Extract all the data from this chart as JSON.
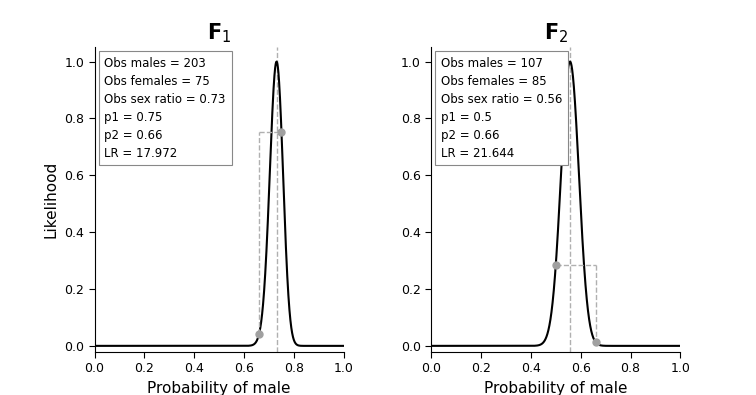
{
  "panels": [
    {
      "title": "F",
      "title_sub": "1",
      "obs_males": 203,
      "obs_females": 75,
      "obs_sex_ratio": 0.73,
      "p1": 0.75,
      "p2": 0.66,
      "LR": 17.972,
      "annotation_lines": [
        "Obs males = 203",
        "Obs females = 75",
        "Obs sex ratio = 0.73",
        "p1 = 0.75",
        "p2 = 0.66",
        "LR = 17.972"
      ]
    },
    {
      "title": "F",
      "title_sub": "2",
      "obs_males": 107,
      "obs_females": 85,
      "obs_sex_ratio": 0.56,
      "p1": 0.5,
      "p2": 0.66,
      "LR": 21.644,
      "annotation_lines": [
        "Obs males = 107",
        "Obs females = 85",
        "Obs sex ratio = 0.56",
        "p1 = 0.5",
        "p2 = 0.66",
        "LR = 21.644"
      ]
    }
  ],
  "xlabel": "Probability of male",
  "ylabel": "Likelihood",
  "xlim": [
    0.0,
    1.0
  ],
  "ylim": [
    -0.02,
    1.05
  ],
  "line_color": "#000000",
  "dashed_color": "#b0b0b0",
  "dot_color": "#a0a0a0",
  "background_color": "#ffffff",
  "title_fontsize": 15,
  "label_fontsize": 11,
  "tick_fontsize": 9,
  "annot_fontsize": 8.5
}
